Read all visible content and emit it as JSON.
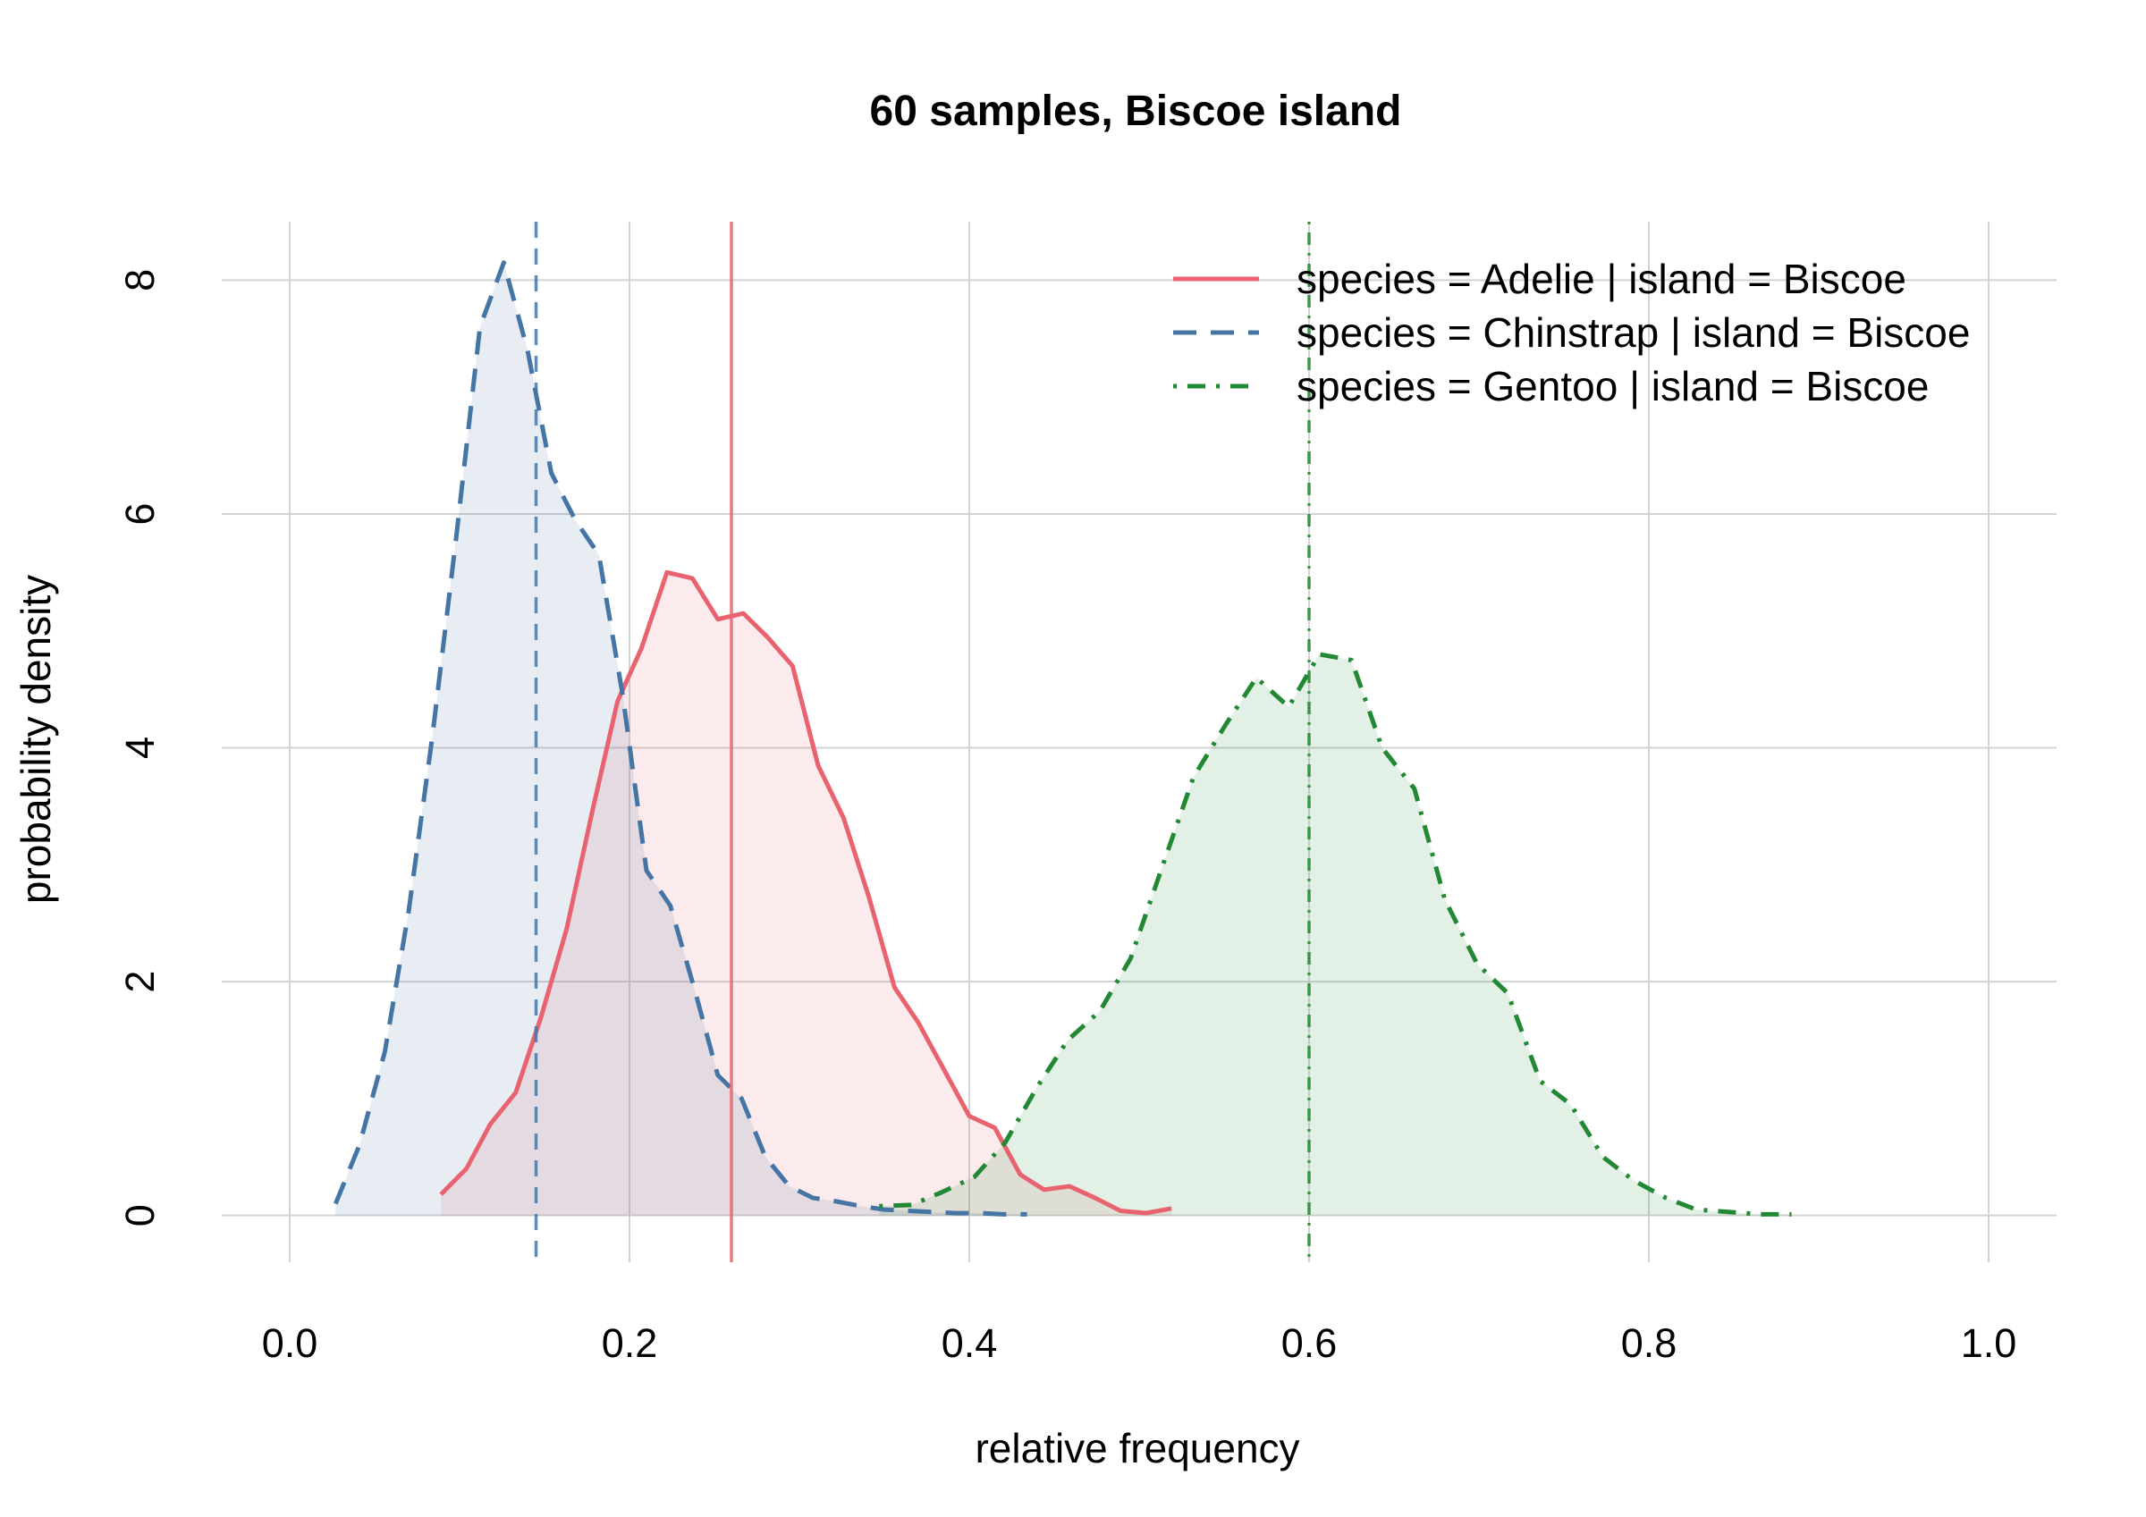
{
  "chart_data": {
    "type": "line",
    "title": "60 samples, Biscoe island",
    "xlabel": "relative frequency",
    "ylabel": "probability density",
    "xlim": [
      -0.04,
      1.04
    ],
    "ylim": [
      -0.4,
      8.5
    ],
    "xticks": [
      "0.0",
      "0.2",
      "0.4",
      "0.6",
      "0.8",
      "1.0"
    ],
    "xtick_values": [
      0,
      0.2,
      0.4,
      0.6,
      0.8,
      1.0
    ],
    "yticks": [
      "0",
      "2",
      "4",
      "6",
      "8"
    ],
    "ytick_values": [
      0,
      2,
      4,
      6,
      8
    ],
    "grid": true,
    "legend_position": "top-right",
    "series": [
      {
        "name": "species = Adelie | island = Biscoe",
        "color": "#e8636f",
        "dash": "solid",
        "mean": 0.26,
        "x": [
          0.089,
          0.104,
          0.118,
          0.133,
          0.148,
          0.163,
          0.178,
          0.193,
          0.207,
          0.222,
          0.237,
          0.252,
          0.267,
          0.281,
          0.296,
          0.311,
          0.326,
          0.341,
          0.356,
          0.37,
          0.385,
          0.4,
          0.415,
          0.43,
          0.444,
          0.459,
          0.474,
          0.489,
          0.504,
          0.519
        ],
        "y": [
          0.18,
          0.4,
          0.78,
          1.05,
          1.7,
          2.45,
          3.45,
          4.4,
          4.85,
          5.5,
          5.45,
          5.1,
          5.15,
          4.95,
          4.7,
          3.85,
          3.4,
          2.72,
          1.95,
          1.65,
          1.25,
          0.85,
          0.75,
          0.35,
          0.22,
          0.25,
          0.15,
          0.04,
          0.02,
          0.06
        ]
      },
      {
        "name": "species = Chinstrap | island = Biscoe",
        "color": "#4575a5",
        "dash": "dashed",
        "mean": 0.145,
        "x": [
          0.027,
          0.041,
          0.056,
          0.07,
          0.084,
          0.098,
          0.112,
          0.126,
          0.14,
          0.154,
          0.168,
          0.182,
          0.196,
          0.21,
          0.224,
          0.238,
          0.252,
          0.266,
          0.28,
          0.294,
          0.308,
          0.322,
          0.336,
          0.35,
          0.364,
          0.378,
          0.392,
          0.406,
          0.42,
          0.434
        ],
        "y": [
          0.1,
          0.6,
          1.4,
          2.6,
          4.1,
          5.8,
          7.6,
          8.15,
          7.4,
          6.35,
          5.95,
          5.65,
          4.45,
          2.95,
          2.65,
          1.95,
          1.2,
          1.0,
          0.5,
          0.25,
          0.15,
          0.12,
          0.08,
          0.05,
          0.04,
          0.03,
          0.02,
          0.02,
          0.01,
          0.01
        ]
      },
      {
        "name": "species = Gentoo | island = Biscoe",
        "color": "#228833",
        "dash": "dotdash",
        "mean": 0.6,
        "x": [
          0.347,
          0.366,
          0.384,
          0.403,
          0.421,
          0.44,
          0.458,
          0.477,
          0.495,
          0.514,
          0.532,
          0.551,
          0.569,
          0.588,
          0.606,
          0.625,
          0.643,
          0.662,
          0.68,
          0.699,
          0.717,
          0.736,
          0.754,
          0.773,
          0.791,
          0.81,
          0.828,
          0.847,
          0.865,
          0.884
        ],
        "y": [
          0.08,
          0.09,
          0.2,
          0.33,
          0.62,
          1.1,
          1.5,
          1.75,
          2.2,
          3.0,
          3.75,
          4.2,
          4.6,
          4.35,
          4.8,
          4.75,
          4.0,
          3.65,
          2.7,
          2.15,
          1.9,
          1.15,
          0.95,
          0.5,
          0.3,
          0.15,
          0.05,
          0.03,
          0.01,
          0.01
        ]
      }
    ]
  }
}
